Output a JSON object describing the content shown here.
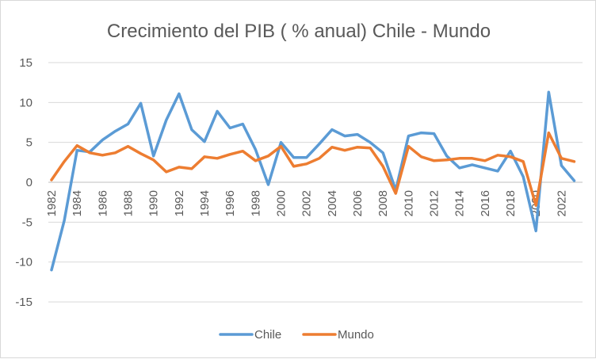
{
  "chart_data": {
    "type": "line",
    "title": "Crecimiento del PIB ( % anual)  Chile - Mundo",
    "xlabel": "",
    "ylabel": "",
    "ylim": [
      -15,
      15
    ],
    "yticks": [
      "15",
      "10",
      "5",
      "0",
      "-5",
      "-10",
      "-15"
    ],
    "ytick_values": [
      15,
      10,
      5,
      0,
      -5,
      -10,
      -15
    ],
    "x": [
      1982,
      1983,
      1984,
      1985,
      1986,
      1987,
      1988,
      1989,
      1990,
      1991,
      1992,
      1993,
      1994,
      1995,
      1996,
      1997,
      1998,
      1999,
      2000,
      2001,
      2002,
      2003,
      2004,
      2005,
      2006,
      2007,
      2008,
      2009,
      2010,
      2011,
      2012,
      2013,
      2014,
      2015,
      2016,
      2017,
      2018,
      2019,
      2020,
      2021,
      2022,
      2023
    ],
    "xtick_labels": [
      "1982",
      "1984",
      "1986",
      "1988",
      "1990",
      "1992",
      "1994",
      "1996",
      "1998",
      "2000",
      "2002",
      "2004",
      "2006",
      "2008",
      "2010",
      "2012",
      "2014",
      "2016",
      "2018",
      "2020",
      "2022"
    ],
    "xtick_values": [
      1982,
      1984,
      1986,
      1988,
      1990,
      1992,
      1994,
      1996,
      1998,
      2000,
      2002,
      2004,
      2006,
      2008,
      2010,
      2012,
      2014,
      2016,
      2018,
      2020,
      2022
    ],
    "grid": true,
    "legend_position": "bottom",
    "series": [
      {
        "name": "Chile",
        "color": "#5b9bd5",
        "values": [
          -11.0,
          -4.8,
          4.0,
          3.8,
          5.3,
          6.4,
          7.3,
          9.9,
          3.3,
          7.8,
          11.1,
          6.6,
          5.1,
          8.9,
          6.8,
          7.3,
          4.1,
          -0.3,
          5.0,
          3.1,
          3.1,
          4.8,
          6.6,
          5.8,
          6.0,
          5.0,
          3.7,
          -1.0,
          5.8,
          6.2,
          6.1,
          3.3,
          1.8,
          2.2,
          1.8,
          1.4,
          3.9,
          0.7,
          -6.1,
          11.3,
          2.1,
          0.2
        ]
      },
      {
        "name": "Mundo",
        "color": "#ed7d31",
        "values": [
          0.3,
          2.6,
          4.6,
          3.7,
          3.4,
          3.7,
          4.5,
          3.6,
          2.8,
          1.3,
          1.9,
          1.7,
          3.2,
          3.0,
          3.5,
          3.9,
          2.7,
          3.3,
          4.5,
          2.0,
          2.3,
          3.0,
          4.4,
          4.0,
          4.4,
          4.3,
          2.0,
          -1.4,
          4.5,
          3.2,
          2.7,
          2.8,
          3.0,
          3.0,
          2.7,
          3.4,
          3.2,
          2.6,
          -2.9,
          6.2,
          3.0,
          2.6
        ]
      }
    ]
  }
}
